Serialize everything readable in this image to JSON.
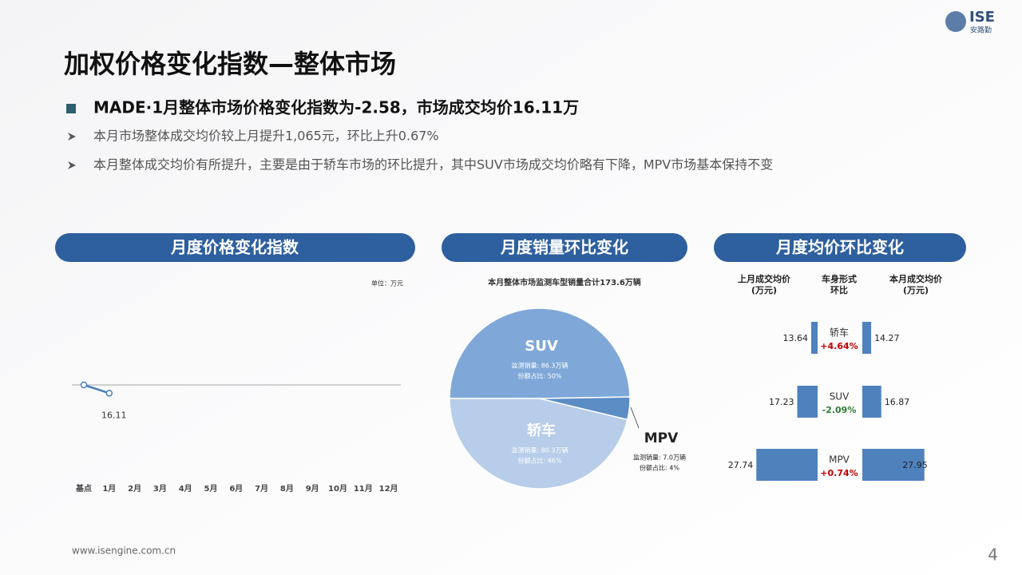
{
  "header": {
    "title": "加权价格变化指数—整体市场",
    "logo": "ISE",
    "logo_sub": "安路勤"
  },
  "bullets": {
    "main": "MADE·1月整体市场价格变化指数为-2.58，市场成交均价16.11万",
    "items": [
      "本月市场整体成交均价较上月提升1,065元，环比上升0.67%",
      "本月整体成交均价有所提升，主要是由于轿车市场的环比提升，其中SUV市场成交均价略有下降，MPV市场基本保持不变"
    ]
  },
  "footer": {
    "url": "www.isengine.com.cn",
    "page": "4"
  },
  "chart_data": [
    {
      "type": "line",
      "title": "月度价格变化指数",
      "unit": "单位：万元",
      "categories": [
        "基点",
        "1月",
        "2月",
        "3月",
        "4月",
        "5月",
        "6月",
        "7月",
        "8月",
        "9月",
        "10月",
        "11月",
        "12月"
      ],
      "values": [
        0,
        -2.58,
        null,
        null,
        null,
        null,
        null,
        null,
        null,
        null,
        null,
        null,
        null
      ],
      "point_labels": [
        null,
        "16.11",
        null,
        null,
        null,
        null,
        null,
        null,
        null,
        null,
        null,
        null,
        null
      ],
      "color": "#4a7ebb",
      "ylim": [
        -30,
        30
      ]
    },
    {
      "type": "pie",
      "title": "月度销量环比变化",
      "subtitle": "本月整体市场监测车型销量合计173.6万辆",
      "categories": [
        "SUV",
        "轿车",
        "MPV"
      ],
      "values": [
        86.3,
        80.3,
        7.0
      ],
      "value_labels": [
        "监测销量: 86.3万辆",
        "监测销量: 80.3万辆",
        "监测销量: 7.0万辆"
      ],
      "share_labels": [
        "份额占比: 50%",
        "份额占比: 46%",
        "份额占比: 4%"
      ],
      "colors": [
        "#7fa8d8",
        "#b7cde9",
        "#5b8cc4"
      ]
    },
    {
      "type": "mirror-bar",
      "title": "月度均价环比变化",
      "headers": [
        [
          "上月成交均价",
          "(万元)"
        ],
        [
          "车身形式",
          "环比"
        ],
        [
          "本月成交均价",
          "(万元)"
        ]
      ],
      "categories": [
        "轿车",
        "SUV",
        "MPV"
      ],
      "series": [
        {
          "name": "上月成交均价",
          "color": "#4f81bd",
          "values": [
            13.64,
            17.23,
            27.74
          ]
        },
        {
          "name": "本月成交均价",
          "color": "#4f81bd",
          "values": [
            14.27,
            16.87,
            27.95
          ]
        }
      ],
      "changes": [
        4.64,
        -2.09,
        0.74
      ],
      "change_labels": [
        "+4.64%",
        "-2.09%",
        "+0.74%"
      ],
      "xlim": [
        12,
        28
      ]
    }
  ]
}
